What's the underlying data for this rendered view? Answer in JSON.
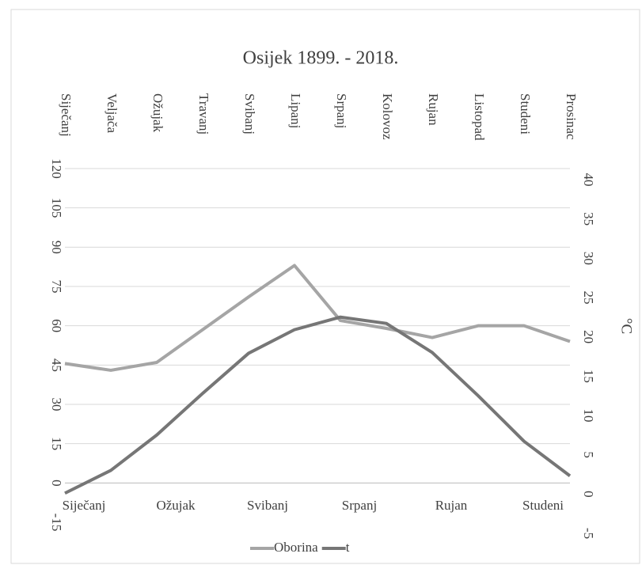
{
  "chart_data": {
    "type": "line",
    "title": "Osijek 1899. - 2018.",
    "categories": [
      "Siječanj",
      "Veljača",
      "Ožujak",
      "Travanj",
      "Svibanj",
      "Lipanj",
      "Srpanj",
      "Kolovoz",
      "Rujan",
      "Listopad",
      "Studeni",
      "Prosinac"
    ],
    "series": [
      {
        "name": "Oborina",
        "color": "#a5a5a5",
        "values": [
          45.6,
          43,
          46,
          58.5,
          71,
          83,
          62,
          59,
          55.5,
          60,
          60,
          54
        ]
      },
      {
        "name": "t",
        "color": "#767676",
        "axis": "y2",
        "values": [
          -1.3,
          1.6,
          6.1,
          11.4,
          16.5,
          19.5,
          21.1,
          20.3,
          16.6,
          11.1,
          5.3,
          0.9
        ]
      }
    ],
    "ylim": [
      -15,
      120
    ],
    "yticks": [
      -15,
      0,
      15,
      30,
      45,
      60,
      75,
      90,
      105,
      120
    ],
    "y2lim": [
      -5,
      40
    ],
    "y2ticks": [
      -5,
      0,
      5,
      10,
      15,
      20,
      25,
      30,
      35,
      40
    ],
    "y2label": "°C",
    "grid": true,
    "legend": "bottom"
  }
}
